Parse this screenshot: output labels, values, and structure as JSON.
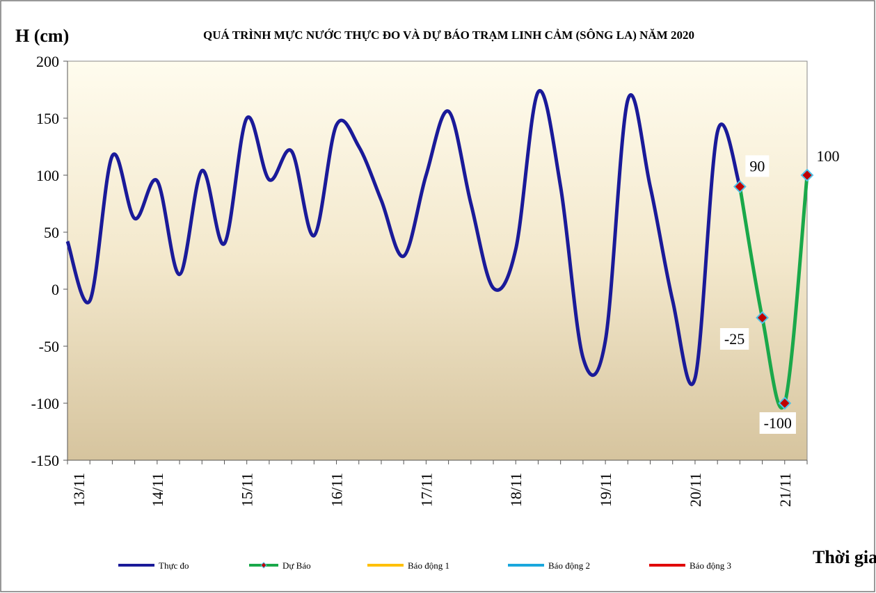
{
  "chart_data": {
    "type": "line",
    "title": "QUÁ TRÌNH  MỰC NƯỚC THỰC ĐO VÀ DỰ BÁO TRẠM  LINH  CẢM (SÔNG LA) NĂM 2020",
    "y_label": "H (cm)",
    "x_label": "Thời gian",
    "categories": [
      "13/11",
      null,
      null,
      null,
      "14/11",
      null,
      null,
      null,
      "15/11",
      null,
      null,
      null,
      "16/11",
      null,
      null,
      null,
      "17/11",
      null,
      null,
      null,
      "18/11",
      null,
      null,
      null,
      "19/11",
      null,
      null,
      null,
      "20/11",
      null,
      null,
      null,
      "21/11",
      null
    ],
    "series": [
      {
        "name": "Thực đo",
        "color": "#1a1a99",
        "values": [
          42,
          -10,
          117,
          62,
          95,
          13,
          104,
          40,
          150,
          96,
          121,
          47,
          144,
          125,
          78,
          29,
          100,
          156,
          75,
          1,
          35,
          173,
          90,
          -60,
          -45,
          166,
          90,
          -10,
          -78,
          138,
          90,
          null,
          null,
          null
        ]
      },
      {
        "name": "Dự Báo",
        "color": "#1aa84a",
        "marker": true,
        "values": [
          null,
          null,
          null,
          null,
          null,
          null,
          null,
          null,
          null,
          null,
          null,
          null,
          null,
          null,
          null,
          null,
          null,
          null,
          null,
          null,
          null,
          null,
          null,
          null,
          null,
          null,
          null,
          null,
          null,
          null,
          90,
          -25,
          -100,
          100
        ]
      },
      {
        "name": "Báo động 1",
        "color": "#ffc000",
        "values": [
          null,
          null,
          null,
          null,
          null,
          null,
          null,
          null,
          null,
          null,
          null,
          null,
          null,
          null,
          null,
          null,
          null,
          null,
          null,
          null,
          null,
          null,
          null,
          null,
          null,
          null,
          null,
          null,
          null,
          null,
          null,
          null,
          null,
          null
        ]
      },
      {
        "name": "Báo động 2",
        "color": "#1aa7dd",
        "values": [
          null,
          null,
          null,
          null,
          null,
          null,
          null,
          null,
          null,
          null,
          null,
          null,
          null,
          null,
          null,
          null,
          null,
          null,
          null,
          null,
          null,
          null,
          null,
          null,
          null,
          null,
          null,
          null,
          null,
          null,
          null,
          null,
          null,
          null
        ]
      },
      {
        "name": "Báo động 3",
        "color": "#e00000",
        "values": [
          null,
          null,
          null,
          null,
          null,
          null,
          null,
          null,
          null,
          null,
          null,
          null,
          null,
          null,
          null,
          null,
          null,
          null,
          null,
          null,
          null,
          null,
          null,
          null,
          null,
          null,
          null,
          null,
          null,
          null,
          null,
          null,
          null,
          null
        ]
      }
    ],
    "ylim": [
      -150,
      200
    ],
    "yticks": [
      -150,
      -100,
      -50,
      0,
      50,
      100,
      150,
      200
    ]
  }
}
